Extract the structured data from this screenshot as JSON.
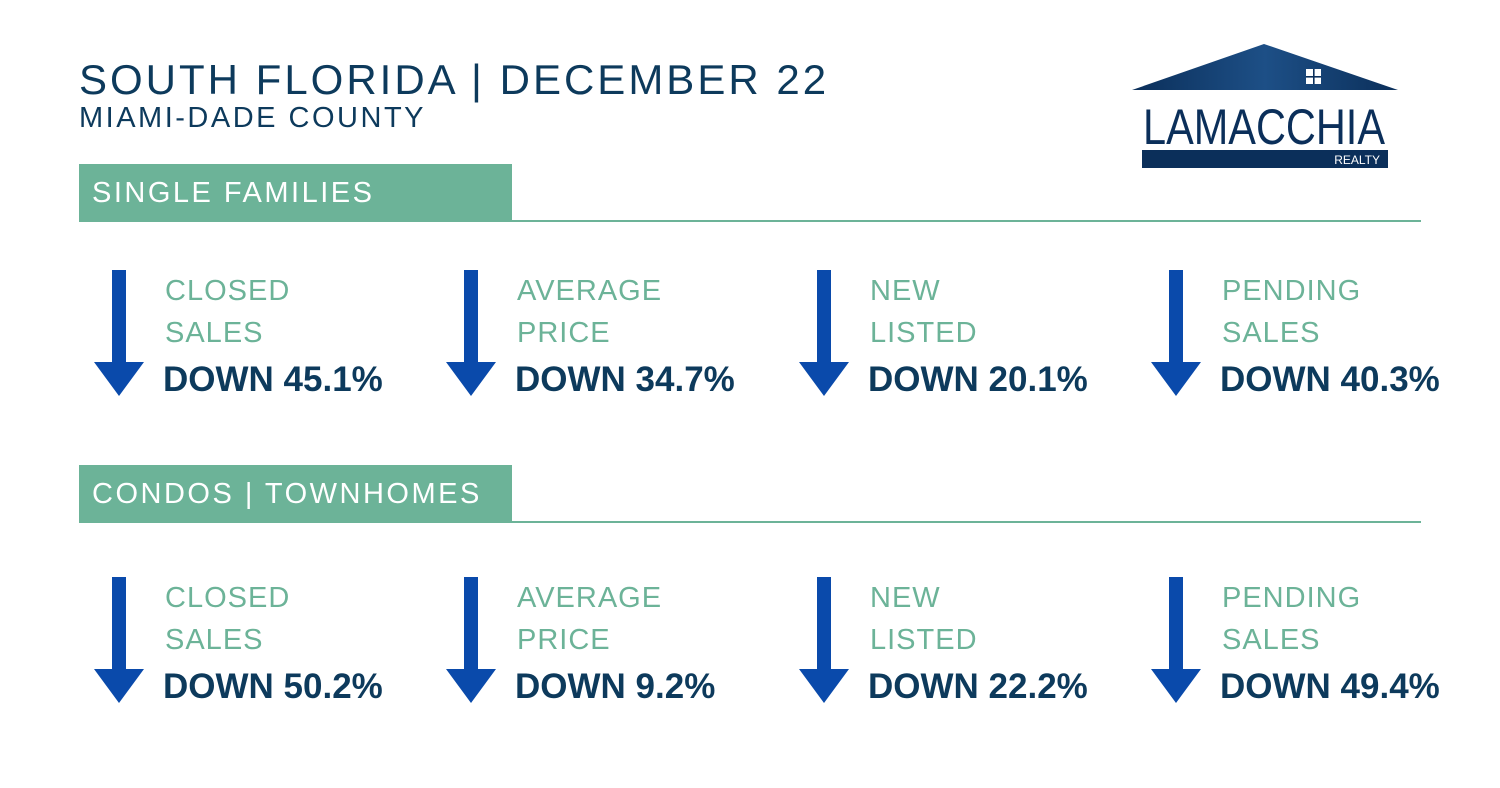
{
  "header": {
    "title": "SOUTH FLORIDA | DECEMBER 22",
    "subtitle": "MIAMI-DADE COUNTY"
  },
  "logo": {
    "name": "LAMACCHIA",
    "tagline": "REALTY"
  },
  "colors": {
    "navy": "#0d3a5c",
    "green": "#6cb398",
    "arrow_blue": "#0a4aab"
  },
  "sections": [
    {
      "title": "SINGLE FAMILIES",
      "stats": [
        {
          "label": "CLOSED\nSALES",
          "value": "DOWN 45.1%",
          "direction": "down"
        },
        {
          "label": "AVERAGE\nPRICE",
          "value": "DOWN 34.7%",
          "direction": "down"
        },
        {
          "label": "NEW\nLISTED",
          "value": "DOWN 20.1%",
          "direction": "down"
        },
        {
          "label": "PENDING\nSALES",
          "value": "DOWN 40.3%",
          "direction": "down"
        }
      ]
    },
    {
      "title": "CONDOS | TOWNHOMES",
      "stats": [
        {
          "label": "CLOSED\nSALES",
          "value": "DOWN 50.2%",
          "direction": "down"
        },
        {
          "label": "AVERAGE\nPRICE",
          "value": "DOWN 9.2%",
          "direction": "down"
        },
        {
          "label": "NEW\nLISTED",
          "value": "DOWN 22.2%",
          "direction": "down"
        },
        {
          "label": "PENDING\nSALES",
          "value": "DOWN 49.4%",
          "direction": "down"
        }
      ]
    }
  ]
}
